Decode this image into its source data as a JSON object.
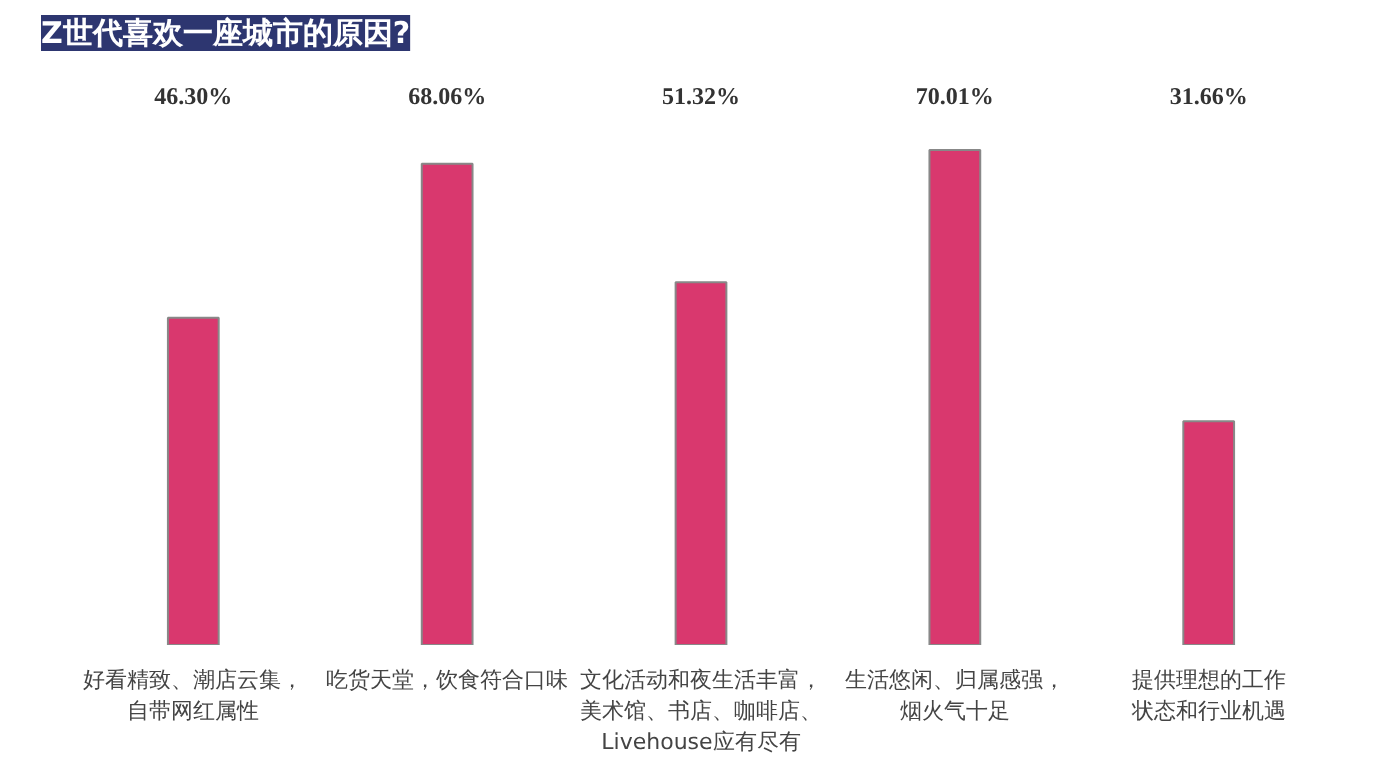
{
  "chart_data": {
    "type": "bar",
    "title": "Z世代喜欢一座城市的原因?",
    "categories": [
      "好看精致、潮店云集，自带网红属性",
      "吃货天堂，饮食符合口味",
      "文化活动和夜生活丰富，美术馆、书店、咖啡店、Livehouse应有尽有",
      "生活悠闲、归属感强，烟火气十足",
      "提供理想的工作状态和行业机遇"
    ],
    "values": [
      46.3,
      68.06,
      51.32,
      70.01,
      31.66
    ],
    "value_labels": [
      "46.30%",
      "68.06%",
      "51.32%",
      "70.01%",
      "31.66%"
    ],
    "color": "#d9386e"
  }
}
